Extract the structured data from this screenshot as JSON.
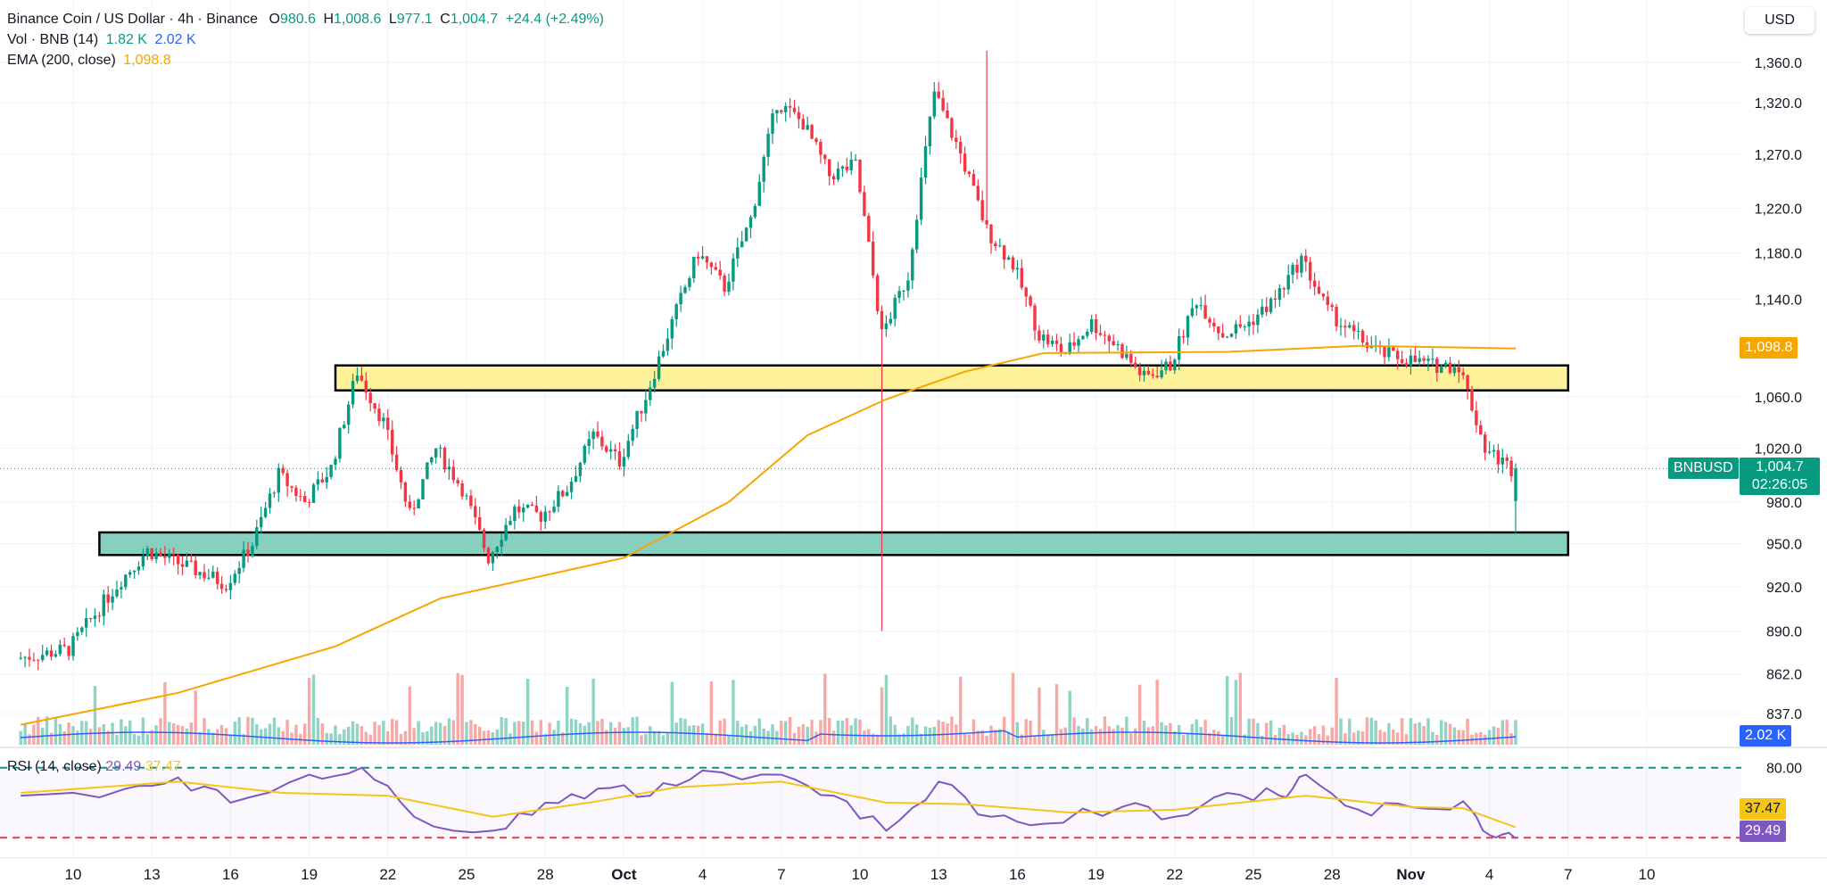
{
  "header": {
    "symbol_title": "Binance Coin / US Dollar · 4h · Binance",
    "o_label": "O",
    "o_value": "980.6",
    "h_label": "H",
    "h_value": "1,008.6",
    "l_label": "L",
    "l_value": "977.1",
    "c_label": "C",
    "c_value": "1,004.7",
    "change": "+24.4 (+2.49%)"
  },
  "vol_legend": {
    "label": "Vol · BNB (14)",
    "v1": "1.82 K",
    "v2": "2.02 K"
  },
  "ema_legend": {
    "label": "EMA (200, close)",
    "value": "1,098.8"
  },
  "rsi_legend": {
    "label": "RSI (14, close)",
    "v1": "29.49",
    "v2": "37.47"
  },
  "currency_button": "USD",
  "price_axis_labels": [
    "1,360.0",
    "1,320.0",
    "1,270.0",
    "1,220.0",
    "1,180.0",
    "1,140.0",
    "1,060.0",
    "1,020.0",
    "980.0",
    "950.0",
    "920.0",
    "890.0",
    "862.0",
    "837.0"
  ],
  "rsi_axis_label": "80.00",
  "tags": {
    "ema": "1,098.8",
    "symbol": "BNBUSD",
    "price": "1,004.7",
    "countdown": "02:26:05",
    "volume": "2.02 K",
    "rsi_ma": "37.47",
    "rsi": "29.49"
  },
  "colors": {
    "up": "#089981",
    "down": "#f23645",
    "ema": "#f7a600",
    "vol_ma": "#2962ff",
    "rsi": "#7e57c2",
    "rsi_ma": "#f5c518",
    "resistance_zone": "#fdf29a",
    "support_zone": "#87cfbf"
  },
  "chart_data": [
    {
      "type": "candlestick",
      "title": "Binance Coin / US Dollar · 4h · Binance",
      "x_tick_labels": [
        "10",
        "13",
        "16",
        "19",
        "22",
        "25",
        "28",
        "Oct",
        "4",
        "7",
        "10",
        "13",
        "16",
        "19",
        "22",
        "25",
        "28",
        "Nov",
        "4",
        "7",
        "10"
      ],
      "x_range": [
        "Sep 08",
        "Nov 11"
      ],
      "y_scale": "log",
      "y_range": [
        825,
        1385
      ],
      "grid": true,
      "anchors": [
        [
          "Sep 08",
          872
        ],
        [
          "Sep 10",
          878
        ],
        [
          "Sep 12",
          925
        ],
        [
          "Sep 13",
          945
        ],
        [
          "Sep 15",
          930
        ],
        [
          "Sep 16",
          922
        ],
        [
          "Sep 17",
          950
        ],
        [
          "Sep 18",
          1000
        ],
        [
          "Sep 19",
          980
        ],
        [
          "Sep 20",
          1005
        ],
        [
          "Sep 21",
          1080
        ],
        [
          "Sep 22",
          1040
        ],
        [
          "Sep 23",
          970
        ],
        [
          "Sep 24",
          1020
        ],
        [
          "Sep 25",
          990
        ],
        [
          "Sep 26",
          940
        ],
        [
          "Sep 27",
          975
        ],
        [
          "Sep 28",
          970
        ],
        [
          "Sep 29",
          990
        ],
        [
          "Sep 30",
          1030
        ],
        [
          "Oct 01",
          1010
        ],
        [
          "Oct 02",
          1060
        ],
        [
          "Oct 03",
          1120
        ],
        [
          "Oct 04",
          1180
        ],
        [
          "Oct 05",
          1150
        ],
        [
          "Oct 06",
          1210
        ],
        [
          "Oct 07",
          1320
        ],
        [
          "Oct 08",
          1300
        ],
        [
          "Oct 09",
          1250
        ],
        [
          "Oct 10",
          1260
        ],
        [
          "Oct 11",
          1110
        ],
        [
          "Oct 12",
          1160
        ],
        [
          "Oct 13",
          1330
        ],
        [
          "Oct 14",
          1270
        ],
        [
          "Oct 15",
          1200
        ],
        [
          "Oct 16",
          1170
        ],
        [
          "Oct 17",
          1110
        ],
        [
          "Oct 18",
          1095
        ],
        [
          "Oct 19",
          1120
        ],
        [
          "Oct 20",
          1100
        ],
        [
          "Oct 21",
          1075
        ],
        [
          "Oct 22",
          1085
        ],
        [
          "Oct 23",
          1140
        ],
        [
          "Oct 24",
          1110
        ],
        [
          "Oct 25",
          1120
        ],
        [
          "Oct 26",
          1140
        ],
        [
          "Oct 27",
          1175
        ],
        [
          "Oct 28",
          1130
        ],
        [
          "Oct 29",
          1110
        ],
        [
          "Oct 30",
          1095
        ],
        [
          "Oct 31",
          1090
        ],
        [
          "Nov 01",
          1085
        ],
        [
          "Nov 02",
          1085
        ],
        [
          "Nov 03",
          1020
        ],
        [
          "Nov 04",
          1004.7
        ]
      ],
      "last_candle": {
        "open": 980.6,
        "high": 1008.6,
        "low": 977.1,
        "close": 1004.7
      },
      "series": [
        {
          "name": "EMA (200, close)",
          "points": [
            [
              "Sep 08",
              830
            ],
            [
              "Sep 14",
              850
            ],
            [
              "Sep 20",
              880
            ],
            [
              "Sep 24",
              912
            ],
            [
              "Oct 01",
              940
            ],
            [
              "Oct 05",
              980
            ],
            [
              "Oct 08",
              1030
            ],
            [
              "Oct 11",
              1058
            ],
            [
              "Oct 14",
              1080
            ],
            [
              "Oct 17",
              1095
            ],
            [
              "Oct 24",
              1096
            ],
            [
              "Oct 29",
              1101
            ],
            [
              "Nov 04",
              1098.8
            ]
          ]
        }
      ],
      "zones": [
        {
          "name": "resistance",
          "from": "Sep 20",
          "to": "Nov 06",
          "low": 1065,
          "high": 1085
        },
        {
          "name": "support",
          "from": "Sep 11",
          "to": "Nov 06",
          "low": 942,
          "high": 958
        }
      ],
      "annotations": [
        {
          "label": "BNBUSD",
          "value": 1004.7
        },
        {
          "label": "EMA",
          "value": 1098.8
        }
      ]
    },
    {
      "type": "bar",
      "title": "Vol · BNB (14)",
      "last_values": [
        1.82,
        2.02
      ],
      "unit": "K"
    },
    {
      "type": "line",
      "title": "RSI (14, close)",
      "y_range": [
        20,
        90
      ],
      "levels": [
        80,
        30
      ],
      "anchors": [
        [
          "Sep 08",
          60
        ],
        [
          "Sep 12",
          65
        ],
        [
          "Sep 14",
          73
        ],
        [
          "Sep 16",
          55
        ],
        [
          "Sep 19",
          75
        ],
        [
          "Sep 21",
          80
        ],
        [
          "Sep 23",
          45
        ],
        [
          "Sep 26",
          35
        ],
        [
          "Sep 28",
          55
        ],
        [
          "Sep 30",
          65
        ],
        [
          "Oct 02",
          60
        ],
        [
          "Oct 04",
          78
        ],
        [
          "Oct 07",
          75
        ],
        [
          "Oct 09",
          60
        ],
        [
          "Oct 11",
          35
        ],
        [
          "Oct 13",
          70
        ],
        [
          "Oct 15",
          45
        ],
        [
          "Oct 17",
          40
        ],
        [
          "Oct 20",
          52
        ],
        [
          "Oct 22",
          45
        ],
        [
          "Oct 24",
          62
        ],
        [
          "Oct 26",
          60
        ],
        [
          "Oct 27",
          75
        ],
        [
          "Oct 29",
          50
        ],
        [
          "Oct 31",
          52
        ],
        [
          "Nov 02",
          56
        ],
        [
          "Nov 03",
          32
        ],
        [
          "Nov 04",
          29.49
        ]
      ],
      "series": [
        {
          "name": "MA",
          "points": [
            [
              "Sep 08",
              62
            ],
            [
              "Sep 14",
              70
            ],
            [
              "Sep 18",
              62
            ],
            [
              "Sep 22",
              60
            ],
            [
              "Sep 26",
              45
            ],
            [
              "Sep 30",
              56
            ],
            [
              "Oct 03",
              66
            ],
            [
              "Oct 07",
              70
            ],
            [
              "Oct 11",
              55
            ],
            [
              "Oct 14",
              54
            ],
            [
              "Oct 18",
              48
            ],
            [
              "Oct 22",
              50
            ],
            [
              "Oct 27",
              60
            ],
            [
              "Oct 31",
              52
            ],
            [
              "Nov 02",
              51
            ],
            [
              "Nov 04",
              37.47
            ]
          ]
        }
      ],
      "last_values": [
        29.49,
        37.47
      ]
    }
  ]
}
